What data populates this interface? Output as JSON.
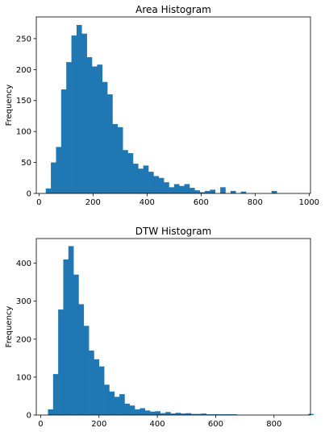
{
  "chart_data": [
    {
      "type": "histogram",
      "title": "Area Histogram",
      "ylabel": "Frequency",
      "xlabel": "",
      "color": "#1f77b4",
      "xlim": [
        -10,
        1005
      ],
      "ylim": [
        0,
        285
      ],
      "xticks": [
        0,
        200,
        400,
        600,
        800,
        1000
      ],
      "yticks": [
        0,
        50,
        100,
        150,
        200,
        250
      ],
      "bin_start": 25,
      "bin_width": 19,
      "counts": [
        8,
        50,
        75,
        168,
        212,
        255,
        272,
        258,
        220,
        205,
        208,
        180,
        160,
        112,
        107,
        70,
        65,
        48,
        40,
        45,
        35,
        28,
        25,
        18,
        10,
        15,
        12,
        15,
        9,
        5,
        2,
        4,
        6,
        0,
        10,
        0,
        4,
        0,
        3,
        0,
        0,
        0,
        0,
        0,
        4,
        0,
        0,
        0,
        0,
        0,
        0,
        0,
        0,
        0,
        0,
        0,
        0,
        2,
        0,
        0,
        0,
        0,
        0,
        0,
        0,
        0,
        0,
        0,
        0,
        2
      ]
    },
    {
      "type": "histogram",
      "title": "DTW Histogram",
      "ylabel": "Frequency",
      "xlabel": "",
      "color": "#1f77b4",
      "xlim": [
        -15,
        925
      ],
      "ylim": [
        0,
        465
      ],
      "xticks": [
        0,
        200,
        400,
        600,
        800
      ],
      "yticks": [
        0,
        100,
        200,
        300,
        400
      ],
      "bin_start": 25,
      "bin_width": 17.5,
      "counts": [
        15,
        108,
        278,
        410,
        445,
        370,
        292,
        235,
        170,
        147,
        128,
        80,
        62,
        48,
        55,
        30,
        25,
        15,
        18,
        12,
        9,
        10,
        5,
        8,
        4,
        6,
        4,
        5,
        3,
        3,
        4,
        2,
        2,
        2,
        2,
        2,
        2,
        0,
        0,
        0,
        0,
        0,
        0,
        0,
        0,
        0,
        0,
        0,
        0,
        0,
        0,
        3
      ]
    }
  ]
}
